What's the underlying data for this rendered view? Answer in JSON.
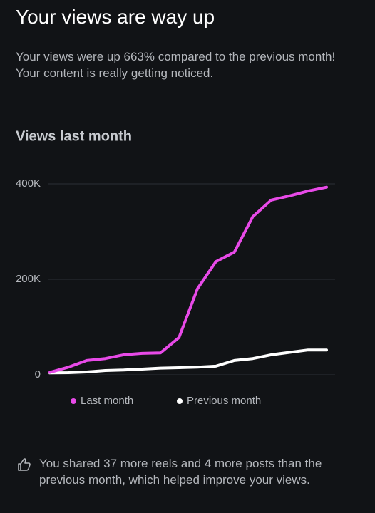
{
  "header": {
    "title": "Your views are way up",
    "description": "Your views were up 663% compared to the previous month! Your content is really getting noticed."
  },
  "chart_data": {
    "type": "line",
    "title": "Views last month",
    "categories": [
      null,
      null,
      null,
      null,
      null,
      null,
      null,
      null,
      null,
      null,
      null,
      null,
      null,
      null,
      null,
      null
    ],
    "series": [
      {
        "name": "Last month",
        "color": "#e84ae8",
        "values": [
          5000,
          16000,
          30000,
          34000,
          42000,
          45000,
          46000,
          78000,
          180000,
          237000,
          257000,
          331000,
          366000,
          375000,
          385000,
          393000
        ]
      },
      {
        "name": "Previous month",
        "color": "#ffffff",
        "values": [
          4000,
          4500,
          6000,
          9000,
          10000,
          12000,
          14000,
          15000,
          16000,
          18000,
          30000,
          34000,
          42000,
          47000,
          52000,
          52000
        ]
      }
    ],
    "ylim": [
      0,
      400000
    ],
    "yticks": [
      {
        "value": 0,
        "label": "0"
      },
      {
        "value": 200000,
        "label": "200K"
      },
      {
        "value": 400000,
        "label": "400K"
      }
    ],
    "grid": true
  },
  "footer": {
    "text": "You shared 37 more reels and 4 more posts than the previous month, which helped improve your views."
  }
}
